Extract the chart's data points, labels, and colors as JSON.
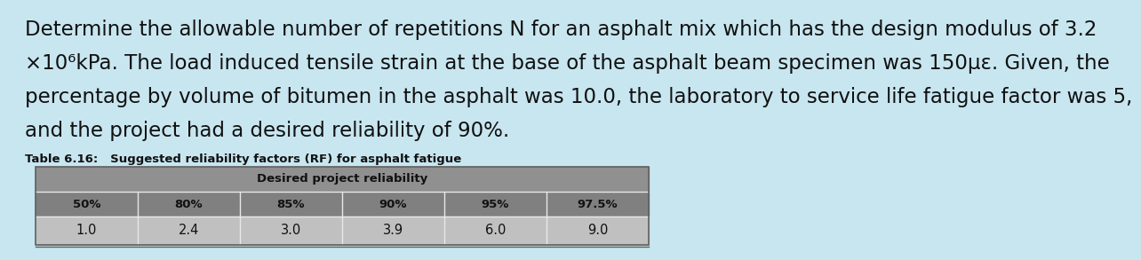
{
  "paragraph_lines": [
    "Determine the allowable number of repetitions N for an asphalt mix which has the design modulus of 3.2",
    "×10⁶kPa. The load induced tensile strain at the base of the asphalt beam specimen was 150με. Given, the",
    "percentage by volume of bitumen in the asphalt was 10.0, the laboratory to service life fatigue factor was 5,",
    "and the project had a desired reliability of 90%."
  ],
  "table_title": "Table 6.16:   Suggested reliability factors (RF) for asphalt fatigue",
  "header_merged": "Desired project reliability",
  "col_headers": [
    "50%",
    "80%",
    "85%",
    "90%",
    "95%",
    "97.5%"
  ],
  "values": [
    "1.0",
    "2.4",
    "3.0",
    "3.9",
    "6.0",
    "9.0"
  ],
  "bg_color": "#c8e6f0",
  "merged_header_color": "#909090",
  "col_header_color": "#808080",
  "data_row_color": "#c0c0c0",
  "table_border_color": "#606060",
  "white_line_color": "#e8e8e8",
  "text_color": "#111111",
  "paragraph_fontsize": 16.5,
  "table_title_fontsize": 9.5,
  "table_header_fontsize": 9.5,
  "table_data_fontsize": 10.5,
  "fig_width": 12.0,
  "fig_height": 2.73
}
